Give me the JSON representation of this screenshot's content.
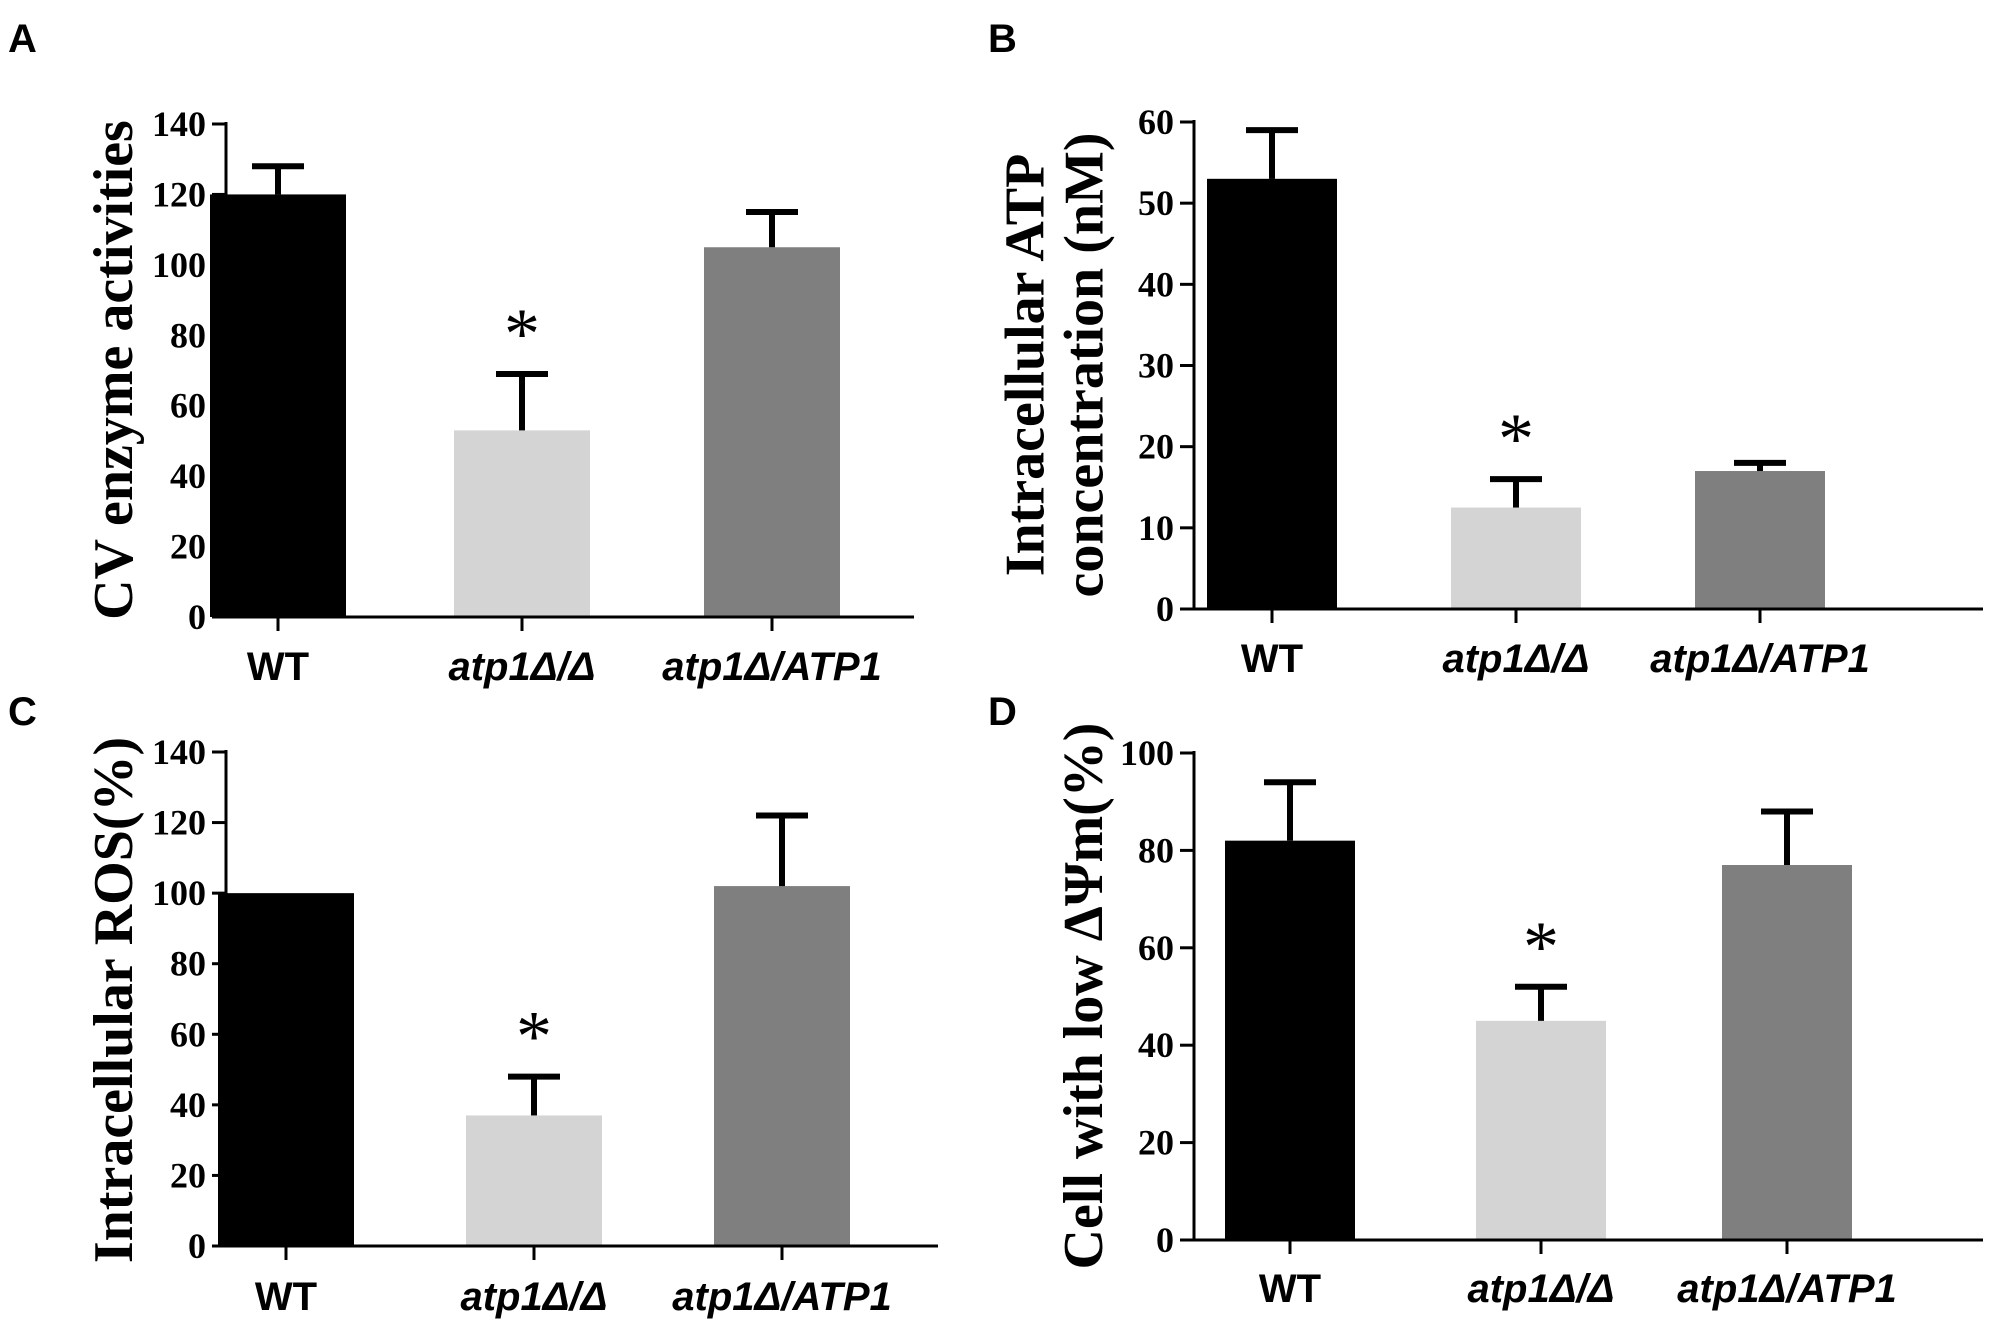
{
  "chart_data": [
    {
      "panel": "A",
      "type": "bar",
      "ylabel": "CV enzyme activities",
      "ylim": [
        0,
        140
      ],
      "yticks": [
        0,
        20,
        40,
        60,
        80,
        100,
        120,
        140
      ],
      "categories": [
        "WT",
        "atp1Δ/Δ",
        "atp1Δ/ATP1"
      ],
      "values": [
        120,
        53,
        105
      ],
      "errors": [
        8,
        16,
        10
      ],
      "significance": [
        "",
        "*",
        ""
      ],
      "colors": [
        "#000000",
        "#d4d4d4",
        "#7f7f7f"
      ]
    },
    {
      "panel": "B",
      "type": "bar",
      "ylabel_lines": [
        "Intracellular ATP",
        "concentration (nM)"
      ],
      "ylim": [
        0,
        60
      ],
      "yticks": [
        0,
        10,
        20,
        30,
        40,
        50,
        60
      ],
      "categories": [
        "WT",
        "atp1Δ/Δ",
        "atp1Δ/ATP1"
      ],
      "values": [
        53,
        12.5,
        17
      ],
      "errors": [
        6,
        3.5,
        1
      ],
      "significance": [
        "",
        "*",
        ""
      ],
      "colors": [
        "#000000",
        "#d4d4d4",
        "#7f7f7f"
      ]
    },
    {
      "panel": "C",
      "type": "bar",
      "ylabel": "Intracellular ROS(%)",
      "ylim": [
        0,
        140
      ],
      "yticks": [
        0,
        20,
        40,
        60,
        80,
        100,
        120,
        140
      ],
      "categories": [
        "WT",
        "atp1Δ/Δ",
        "atp1Δ/ATP1"
      ],
      "values": [
        100,
        37,
        102
      ],
      "errors": [
        0,
        11,
        20
      ],
      "significance": [
        "",
        "*",
        ""
      ],
      "colors": [
        "#000000",
        "#d4d4d4",
        "#7f7f7f"
      ]
    },
    {
      "panel": "D",
      "type": "bar",
      "ylabel": "Cell with low ΔΨm(%)",
      "ylim": [
        0,
        100
      ],
      "yticks": [
        0,
        20,
        40,
        60,
        80,
        100
      ],
      "categories": [
        "WT",
        "atp1Δ/Δ",
        "atp1Δ/ATP1"
      ],
      "values": [
        82,
        45,
        77
      ],
      "errors": [
        12,
        7,
        11
      ],
      "significance": [
        "",
        "*",
        ""
      ],
      "colors": [
        "#000000",
        "#d4d4d4",
        "#7f7f7f"
      ]
    }
  ]
}
